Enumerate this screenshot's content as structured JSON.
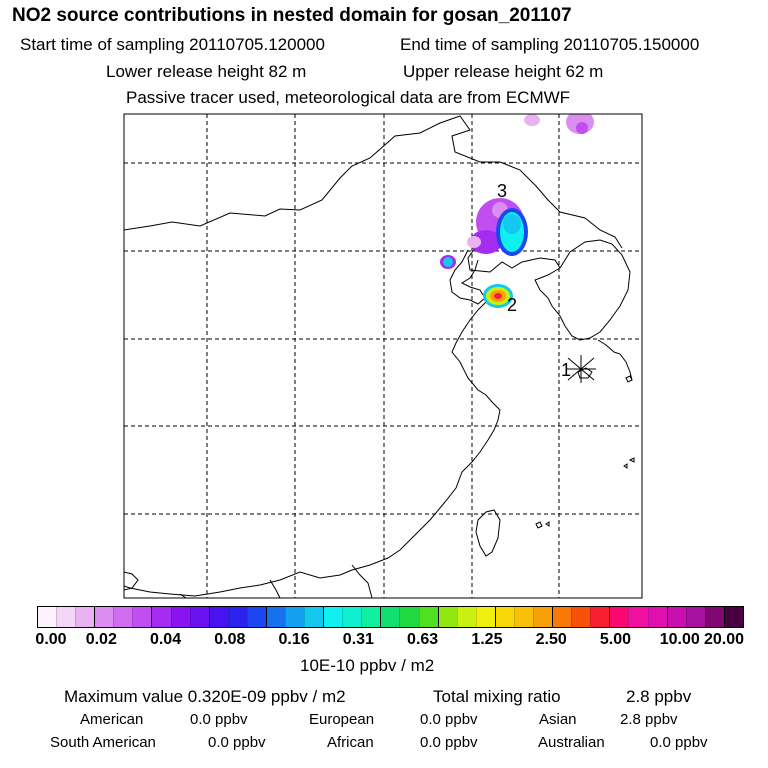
{
  "header": {
    "title": "NO2 source contributions in nested domain for gosan_201107",
    "start": "Start time of sampling 20110705.120000",
    "end": "End time of sampling 20110705.150000",
    "lower": "Lower release height   82 m",
    "upper": "Upper release height   62 m",
    "note": "Passive tracer used, meteorological data are from ECMWF"
  },
  "map": {
    "labels": [
      "1",
      "2",
      "3"
    ]
  },
  "colorbar": {
    "colors": [
      "#fdf3fd",
      "#f3d6f8",
      "#e9b3f2",
      "#dc8ef0",
      "#cf6cf0",
      "#c04ef0",
      "#a42cf0",
      "#8a14ef",
      "#6a12f0",
      "#4a12f0",
      "#2c22f0",
      "#1c46f0",
      "#1670f0",
      "#14a0f0",
      "#14c8f0",
      "#10f0f0",
      "#10f0d0",
      "#10f0a0",
      "#10e070",
      "#20d840",
      "#50e020",
      "#90e810",
      "#c8f010",
      "#f0f010",
      "#f8d808",
      "#f8c008",
      "#f8a008",
      "#f87808",
      "#f85008",
      "#f82030",
      "#f80870",
      "#f010a0",
      "#e010b0",
      "#c810b0",
      "#a810a0",
      "#800870",
      "#480040"
    ],
    "ticks": [
      "0.00",
      "0.02",
      "0.04",
      "0.08",
      "0.16",
      "0.31",
      "0.63",
      "1.25",
      "2.50",
      "5.00",
      "10.00",
      "20.00"
    ],
    "unit": "10E-10 ppbv / m2"
  },
  "stats": {
    "max_label": "Maximum value  0.320E-09 ppbv / m2",
    "total_label": "Total mixing ratio",
    "total_value": "2.8 ppbv",
    "regions": [
      {
        "name": "American",
        "value": "0.0 ppbv"
      },
      {
        "name": "European",
        "value": "0.0 ppbv"
      },
      {
        "name": "Asian",
        "value": "2.8 ppbv"
      },
      {
        "name": "South American",
        "value": "0.0 ppbv"
      },
      {
        "name": "African",
        "value": "0.0 ppbv"
      },
      {
        "name": "Australian",
        "value": "0.0 ppbv"
      }
    ]
  }
}
